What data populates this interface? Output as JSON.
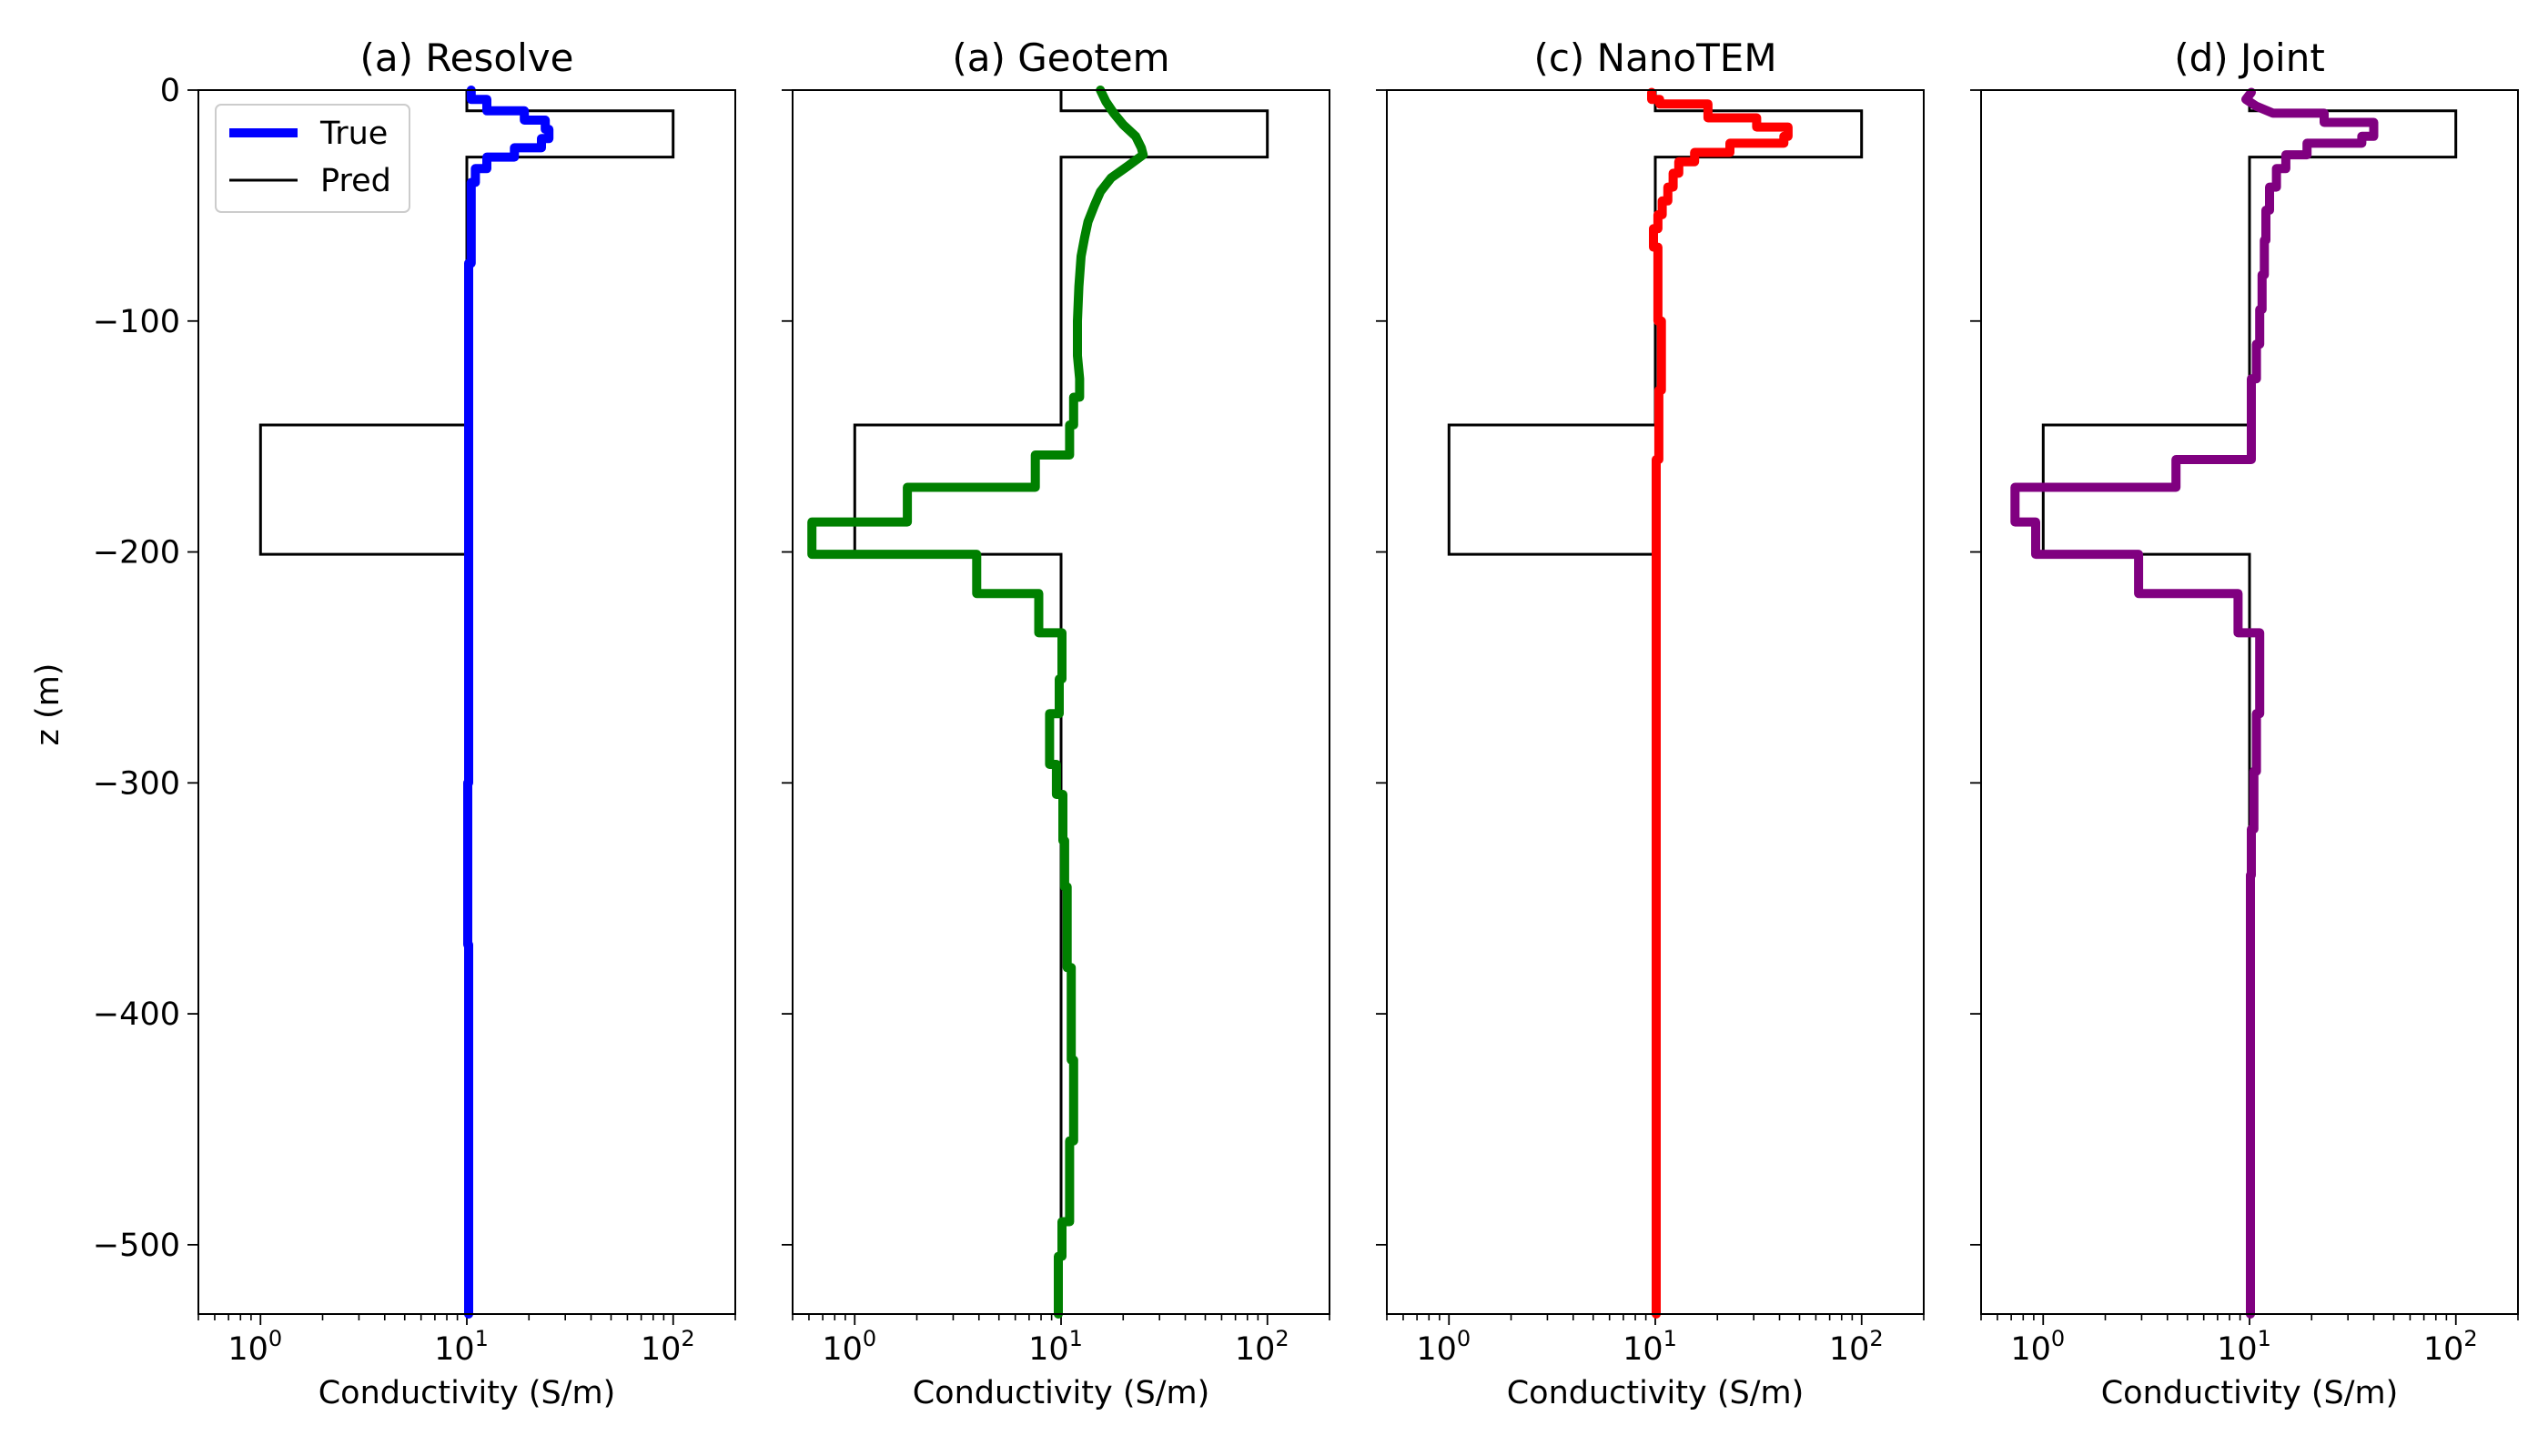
{
  "figure": {
    "ylabel": "z (m)",
    "legend": {
      "placement": "upper-left",
      "panel": 0,
      "entries": [
        {
          "label": "True",
          "color": "#0000ff"
        },
        {
          "label": "Pred",
          "color": "#000000"
        }
      ]
    }
  },
  "chart_data": [
    {
      "type": "line",
      "title": "(a) Resolve",
      "xlabel": "Conductivity (S/m)",
      "ylabel": "z (m)",
      "xscale": "log",
      "xlim": [
        0.5,
        200
      ],
      "ylim": [
        -530,
        0
      ],
      "xticks": [
        1,
        10,
        100
      ],
      "xtick_labels": [
        "10",
        "10",
        "10"
      ],
      "xtick_exponents": [
        "0",
        "1",
        "2"
      ],
      "yticks": [
        0,
        -100,
        -200,
        -300,
        -400,
        -500
      ],
      "ytick_labels": [
        "0",
        "−100",
        "−200",
        "−300",
        "−400",
        "−500"
      ],
      "color": "#0000ff",
      "true_model": [
        [
          10,
          0
        ],
        [
          10,
          -9
        ],
        [
          100,
          -9
        ],
        [
          100,
          -29
        ],
        [
          10,
          -29
        ],
        [
          10,
          -145
        ],
        [
          1,
          -145
        ],
        [
          1,
          -201
        ],
        [
          10,
          -201
        ],
        [
          10,
          -530
        ]
      ],
      "predicted": [
        [
          10.5,
          0
        ],
        [
          10.5,
          -4
        ],
        [
          12.5,
          -4
        ],
        [
          12.5,
          -9
        ],
        [
          19,
          -9
        ],
        [
          19,
          -13
        ],
        [
          24,
          -13
        ],
        [
          24,
          -17
        ],
        [
          25,
          -17
        ],
        [
          25,
          -21
        ],
        [
          23,
          -21
        ],
        [
          23,
          -25
        ],
        [
          17,
          -25
        ],
        [
          17,
          -29
        ],
        [
          12.5,
          -29
        ],
        [
          12.5,
          -34
        ],
        [
          11,
          -34
        ],
        [
          11,
          -40
        ],
        [
          10.5,
          -40
        ],
        [
          10.5,
          -75
        ],
        [
          10.2,
          -75
        ],
        [
          10.2,
          -300
        ],
        [
          10.1,
          -300
        ],
        [
          10.1,
          -370
        ],
        [
          10.2,
          -370
        ],
        [
          10.2,
          -530
        ]
      ]
    },
    {
      "type": "line",
      "title": "(a) Geotem",
      "xlabel": "Conductivity (S/m)",
      "xscale": "log",
      "xlim": [
        0.5,
        200
      ],
      "ylim": [
        -530,
        0
      ],
      "xticks": [
        1,
        10,
        100
      ],
      "xtick_labels": [
        "10",
        "10",
        "10"
      ],
      "xtick_exponents": [
        "0",
        "1",
        "2"
      ],
      "color": "#008000",
      "true_model": [
        [
          10,
          0
        ],
        [
          10,
          -9
        ],
        [
          100,
          -9
        ],
        [
          100,
          -29
        ],
        [
          10,
          -29
        ],
        [
          10,
          -145
        ],
        [
          1,
          -145
        ],
        [
          1,
          -201
        ],
        [
          10,
          -201
        ],
        [
          10,
          -530
        ]
      ],
      "predicted": [
        [
          15.5,
          0
        ],
        [
          16.5,
          -5
        ],
        [
          18,
          -10
        ],
        [
          20,
          -15
        ],
        [
          23,
          -20
        ],
        [
          24.5,
          -25
        ],
        [
          25,
          -28
        ],
        [
          21,
          -33
        ],
        [
          17.5,
          -38
        ],
        [
          15.5,
          -44
        ],
        [
          14.5,
          -50
        ],
        [
          13.5,
          -57
        ],
        [
          13,
          -64
        ],
        [
          12.5,
          -72
        ],
        [
          12.2,
          -85
        ],
        [
          12,
          -100
        ],
        [
          12,
          -115
        ],
        [
          12.3,
          -125
        ],
        [
          12.3,
          -133
        ],
        [
          11.5,
          -133
        ],
        [
          11.5,
          -145
        ],
        [
          11,
          -145
        ],
        [
          11,
          -158
        ],
        [
          7.5,
          -158
        ],
        [
          7.5,
          -172
        ],
        [
          1.8,
          -172
        ],
        [
          1.8,
          -187
        ],
        [
          0.62,
          -187
        ],
        [
          0.62,
          -201
        ],
        [
          3.9,
          -201
        ],
        [
          3.9,
          -218
        ],
        [
          7.8,
          -218
        ],
        [
          7.8,
          -235
        ],
        [
          10.1,
          -235
        ],
        [
          10.1,
          -255
        ],
        [
          9.8,
          -255
        ],
        [
          9.8,
          -270
        ],
        [
          8.8,
          -270
        ],
        [
          8.8,
          -292
        ],
        [
          9.5,
          -292
        ],
        [
          9.5,
          -305
        ],
        [
          10.2,
          -305
        ],
        [
          10.2,
          -325
        ],
        [
          10.4,
          -325
        ],
        [
          10.4,
          -345
        ],
        [
          10.7,
          -345
        ],
        [
          10.7,
          -380
        ],
        [
          11.2,
          -380
        ],
        [
          11.2,
          -420
        ],
        [
          11.5,
          -420
        ],
        [
          11.5,
          -455
        ],
        [
          11,
          -455
        ],
        [
          11,
          -490
        ],
        [
          10.1,
          -490
        ],
        [
          10.1,
          -505
        ],
        [
          9.7,
          -505
        ],
        [
          9.7,
          -530
        ]
      ]
    },
    {
      "type": "line",
      "title": "(c) NanoTEM",
      "xlabel": "Conductivity (S/m)",
      "xscale": "log",
      "xlim": [
        0.5,
        200
      ],
      "ylim": [
        -530,
        0
      ],
      "xticks": [
        1,
        10,
        100
      ],
      "xtick_labels": [
        "10",
        "10",
        "10"
      ],
      "xtick_exponents": [
        "0",
        "1",
        "2"
      ],
      "color": "#ff0000",
      "true_model": [
        [
          10,
          0
        ],
        [
          10,
          -9
        ],
        [
          100,
          -9
        ],
        [
          100,
          -29
        ],
        [
          10,
          -29
        ],
        [
          10,
          -145
        ],
        [
          1,
          -145
        ],
        [
          1,
          -201
        ],
        [
          10,
          -201
        ],
        [
          10,
          -530
        ]
      ],
      "predicted": [
        [
          9.6,
          -1
        ],
        [
          9.6,
          -4
        ],
        [
          10.5,
          -4
        ],
        [
          10.5,
          -6
        ],
        [
          18,
          -6
        ],
        [
          18,
          -12
        ],
        [
          31,
          -12
        ],
        [
          31,
          -16
        ],
        [
          44,
          -16
        ],
        [
          44,
          -20
        ],
        [
          42,
          -20
        ],
        [
          42,
          -23
        ],
        [
          23,
          -23
        ],
        [
          23,
          -27
        ],
        [
          15.5,
          -27
        ],
        [
          15.5,
          -31
        ],
        [
          13,
          -31
        ],
        [
          13,
          -36
        ],
        [
          12.2,
          -36
        ],
        [
          12.2,
          -42
        ],
        [
          11.5,
          -42
        ],
        [
          11.5,
          -48
        ],
        [
          10.8,
          -48
        ],
        [
          10.8,
          -54
        ],
        [
          10.3,
          -54
        ],
        [
          10.3,
          -60
        ],
        [
          9.8,
          -60
        ],
        [
          9.8,
          -68
        ],
        [
          10.3,
          -68
        ],
        [
          10.3,
          -100
        ],
        [
          10.7,
          -100
        ],
        [
          10.7,
          -130
        ],
        [
          10.4,
          -130
        ],
        [
          10.4,
          -160
        ],
        [
          10.1,
          -160
        ],
        [
          10.1,
          -530
        ]
      ]
    },
    {
      "type": "line",
      "title": "(d) Joint",
      "xlabel": "Conductivity (S/m)",
      "xscale": "log",
      "xlim": [
        0.5,
        200
      ],
      "ylim": [
        -530,
        0
      ],
      "xticks": [
        1,
        10,
        100
      ],
      "xtick_labels": [
        "10",
        "10",
        "10"
      ],
      "xtick_exponents": [
        "0",
        "1",
        "2"
      ],
      "color": "#800080",
      "true_model": [
        [
          10,
          0
        ],
        [
          10,
          -9
        ],
        [
          100,
          -9
        ],
        [
          100,
          -29
        ],
        [
          10,
          -29
        ],
        [
          10,
          -145
        ],
        [
          1,
          -145
        ],
        [
          1,
          -201
        ],
        [
          10,
          -201
        ],
        [
          10,
          -530
        ]
      ],
      "predicted": [
        [
          10.2,
          -1
        ],
        [
          9.6,
          -4
        ],
        [
          10.8,
          -7
        ],
        [
          13,
          -10
        ],
        [
          23,
          -10
        ],
        [
          23,
          -14
        ],
        [
          40,
          -14
        ],
        [
          40,
          -20
        ],
        [
          35,
          -20
        ],
        [
          35,
          -23
        ],
        [
          19,
          -23
        ],
        [
          19,
          -28
        ],
        [
          15,
          -28
        ],
        [
          15,
          -34
        ],
        [
          13.5,
          -34
        ],
        [
          13.5,
          -42
        ],
        [
          12.5,
          -42
        ],
        [
          12.5,
          -52
        ],
        [
          12,
          -52
        ],
        [
          12,
          -65
        ],
        [
          11.8,
          -65
        ],
        [
          11.8,
          -80
        ],
        [
          11.5,
          -80
        ],
        [
          11.5,
          -95
        ],
        [
          11.2,
          -95
        ],
        [
          11.2,
          -110
        ],
        [
          10.8,
          -110
        ],
        [
          10.8,
          -125
        ],
        [
          10.2,
          -125
        ],
        [
          10.2,
          -160
        ],
        [
          4.4,
          -160
        ],
        [
          4.4,
          -172
        ],
        [
          0.73,
          -172
        ],
        [
          0.73,
          -187
        ],
        [
          0.92,
          -187
        ],
        [
          0.92,
          -201
        ],
        [
          2.9,
          -201
        ],
        [
          2.9,
          -218
        ],
        [
          8.8,
          -218
        ],
        [
          8.8,
          -235
        ],
        [
          11.2,
          -235
        ],
        [
          11.2,
          -270
        ],
        [
          10.8,
          -270
        ],
        [
          10.8,
          -295
        ],
        [
          10.5,
          -295
        ],
        [
          10.5,
          -320
        ],
        [
          10.2,
          -320
        ],
        [
          10.2,
          -340
        ],
        [
          10.1,
          -340
        ],
        [
          10.1,
          -530
        ]
      ]
    }
  ]
}
